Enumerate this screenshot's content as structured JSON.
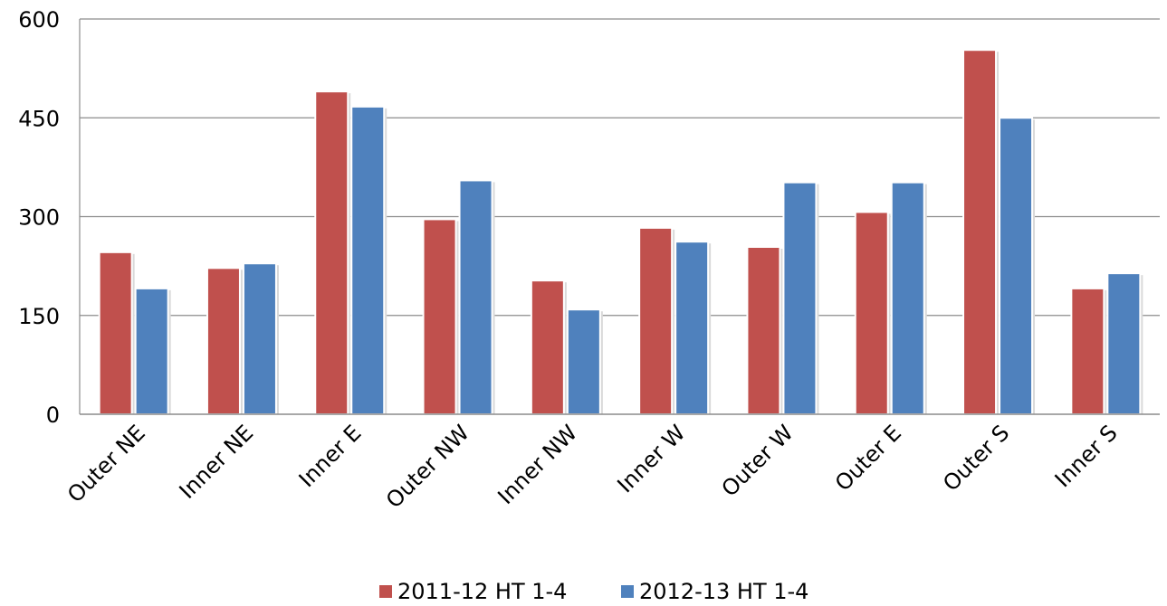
{
  "chart_data": {
    "type": "bar",
    "title": "",
    "xlabel": "",
    "ylabel": "",
    "categories": [
      "Outer NE",
      "Inner NE",
      "Inner E",
      "Outer NW",
      "Inner NW",
      "Inner W",
      "Outer W",
      "Outer E",
      "Outer S",
      "Inner S"
    ],
    "series": [
      {
        "name": "2011-12 HT 1-4",
        "color": "#c0504d",
        "values": [
          246,
          222,
          490,
          296,
          203,
          283,
          254,
          307,
          553,
          191
        ]
      },
      {
        "name": "2012-13 HT 1-4",
        "color": "#4f81bd",
        "values": [
          191,
          229,
          467,
          355,
          159,
          262,
          352,
          352,
          450,
          214
        ]
      }
    ],
    "ylim": [
      0,
      600
    ],
    "yticks": [
      0,
      150,
      300,
      450,
      600
    ],
    "grid": true,
    "legend": "bottom"
  }
}
